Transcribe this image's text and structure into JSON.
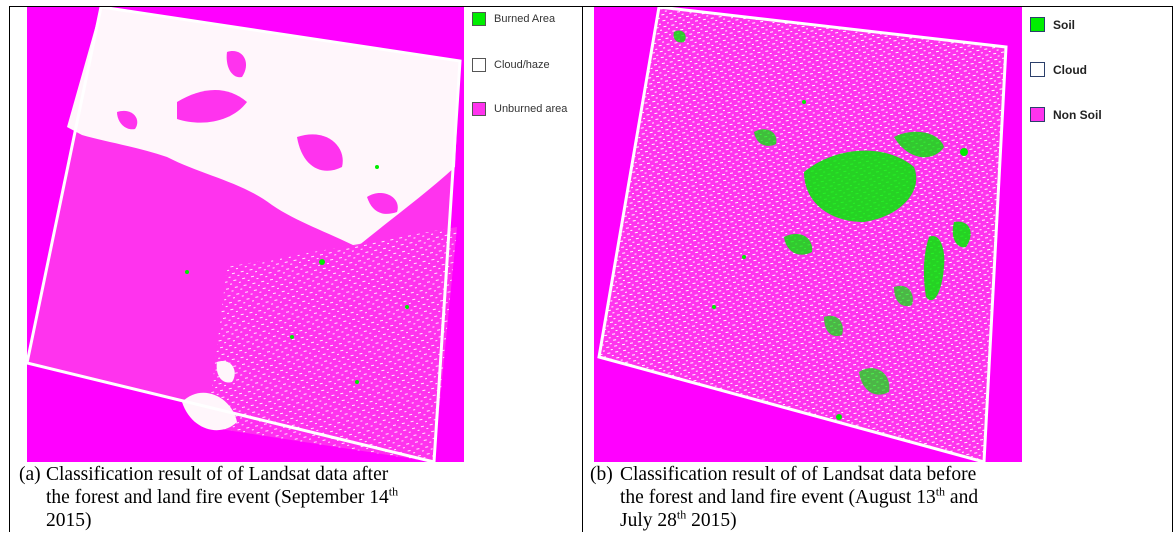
{
  "panel_a": {
    "legend": [
      {
        "label": "Burned Area",
        "color": "#00ee00"
      },
      {
        "label": "Cloud/haze",
        "color": "#ffffff"
      },
      {
        "label": "Unburned area",
        "color": "#ff33ee"
      }
    ],
    "caption": {
      "tag": "(a)",
      "line1": "Classification result of of Landsat data after",
      "line2_pre": "the forest and land fire event (September 14",
      "line2_sup": "th",
      "line3": "2015)"
    }
  },
  "panel_b": {
    "legend": [
      {
        "label": "Soil",
        "color": "#00ee00"
      },
      {
        "label": "Cloud",
        "color": "#ffffff"
      },
      {
        "label": "Non Soil",
        "color": "#ff33ee"
      }
    ],
    "caption": {
      "tag": "(b)",
      "line1": "Classification result of of Landsat data before",
      "line2_pre": "the forest and land fire event (August 13",
      "line2_sup": "th",
      "line2_post": " and",
      "line3_pre": "July 28",
      "line3_sup": "th",
      "line3_post": " 2015)"
    }
  },
  "colors": {
    "magenta": "#ff00ff",
    "scene_magenta": "#ff33ee",
    "green": "#00ee00",
    "white": "#ffffff"
  }
}
